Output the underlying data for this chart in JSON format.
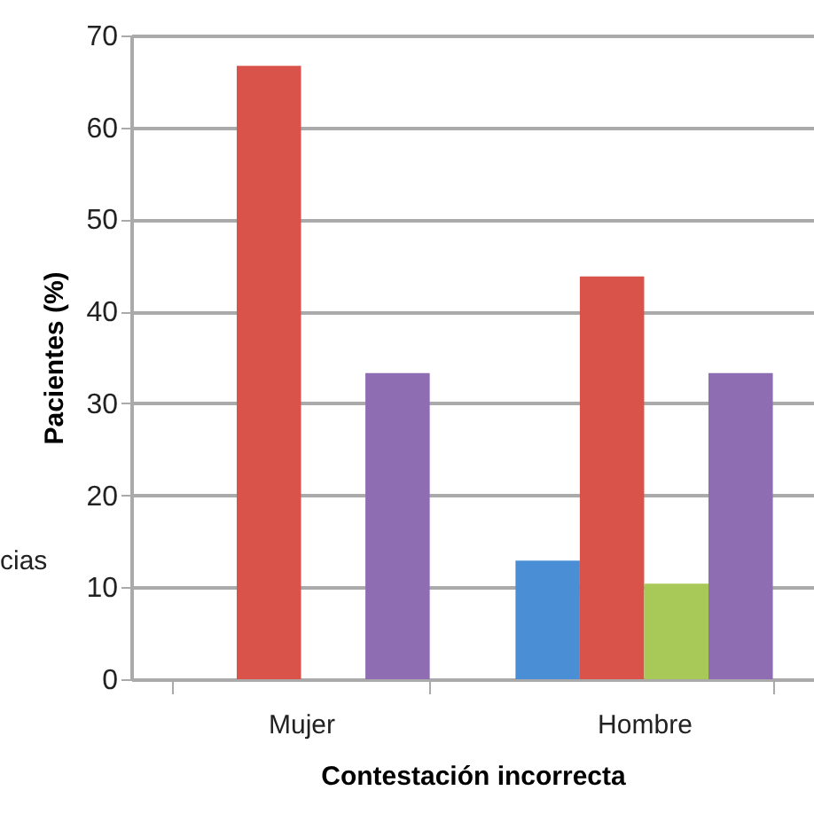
{
  "chart_data": {
    "type": "bar",
    "xlabel": "Contestación incorrecta",
    "ylabel": "Pacientes (%)",
    "categories": [
      "Mujer",
      "Hombre"
    ],
    "series": [
      {
        "color": "#4a8fd6",
        "values": [
          0,
          12.9
        ]
      },
      {
        "color": "#d9534a",
        "values": [
          66.7,
          43.8
        ]
      },
      {
        "color": "#a8c957",
        "values": [
          0,
          10.4
        ]
      },
      {
        "color": "#8e6db3",
        "values": [
          33.3,
          33.3
        ]
      }
    ],
    "ylim": [
      0,
      70
    ],
    "yticks": [
      0,
      10,
      20,
      30,
      40,
      50,
      60,
      70
    ],
    "grid": "y",
    "annotations": [
      "cias"
    ]
  }
}
